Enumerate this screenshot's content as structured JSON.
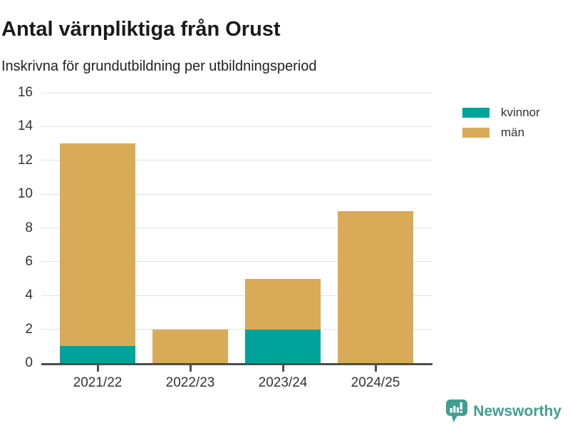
{
  "chart_data": {
    "type": "bar",
    "stacked": true,
    "title": "Antal värnpliktiga från Orust",
    "subtitle": "Inskrivna för grundutbildning per utbildningsperiod",
    "categories": [
      "2021/22",
      "2022/23",
      "2023/24",
      "2024/25"
    ],
    "series": [
      {
        "name": "kvinnor",
        "color": "#00a39a",
        "values": [
          1,
          0,
          2,
          0
        ]
      },
      {
        "name": "män",
        "color": "#d9ab59",
        "values": [
          12,
          2,
          3,
          9
        ]
      }
    ],
    "stack_totals": [
      13,
      2,
      5,
      9
    ],
    "xlabel": "",
    "ylabel": "",
    "ylim": [
      0,
      16
    ],
    "yticks": [
      0,
      2,
      4,
      6,
      8,
      10,
      12,
      14,
      16
    ],
    "grid": "horizontal",
    "legend_position": "top-right",
    "grid_color": "#e2e2e2",
    "axis_color": "#4d4d4d",
    "text_color": "#333333"
  },
  "footer": {
    "brand": "Newsworthy",
    "brand_color": "#3f9f92"
  }
}
